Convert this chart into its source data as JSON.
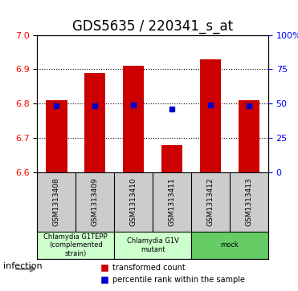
{
  "title": "GDS5635 / 220341_s_at",
  "samples": [
    "GSM1313408",
    "GSM1313409",
    "GSM1313410",
    "GSM1313411",
    "GSM1313412",
    "GSM1313413"
  ],
  "bar_values": [
    6.81,
    6.89,
    6.91,
    6.68,
    6.93,
    6.81
  ],
  "bar_base": 6.6,
  "percentile_values": [
    6.795,
    6.795,
    6.796,
    6.785,
    6.796,
    6.795
  ],
  "ylim": [
    6.6,
    7.0
  ],
  "yticks": [
    6.6,
    6.7,
    6.8,
    6.9,
    7.0
  ],
  "right_yticks": [
    0,
    25,
    50,
    75,
    100
  ],
  "bar_color": "#cc0000",
  "dot_color": "#0000cc",
  "bar_width": 0.55,
  "groups": [
    {
      "label": "Chlamydia G1TEPP\n(complemented\nstrain)",
      "samples": [
        0,
        1
      ],
      "color": "#ccffcc"
    },
    {
      "label": "Chlamydia G1V\nmutant",
      "samples": [
        2,
        3
      ],
      "color": "#ccffcc"
    },
    {
      "label": "mock",
      "samples": [
        4,
        5
      ],
      "color": "#66cc66"
    }
  ],
  "infection_label": "infection",
  "legend_bar_label": "transformed count",
  "legend_dot_label": "percentile rank within the sample",
  "title_fontsize": 12,
  "axis_label_fontsize": 9,
  "tick_fontsize": 8,
  "group_fontsize": 8
}
